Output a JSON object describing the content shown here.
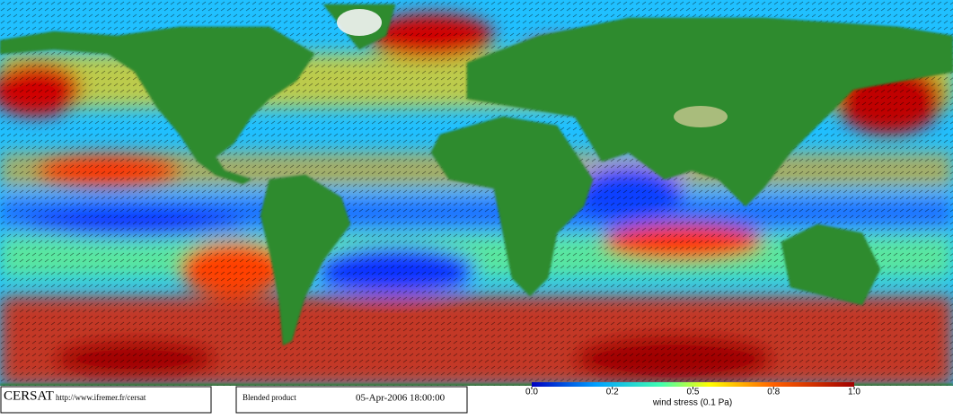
{
  "footer": {
    "logo": "CERSAT",
    "url": "http://www.ifremer.fr/cersat",
    "product": "Blended product",
    "date": "05-Apr-2006 18:00:00"
  },
  "colorbar": {
    "label": "wind stress (0.1 Pa)",
    "ticks": [
      {
        "value": 0,
        "label": "0.0"
      },
      0.2,
      0.5,
      0.8,
      {
        "value": 1,
        "label": "1.0"
      }
    ]
  }
}
